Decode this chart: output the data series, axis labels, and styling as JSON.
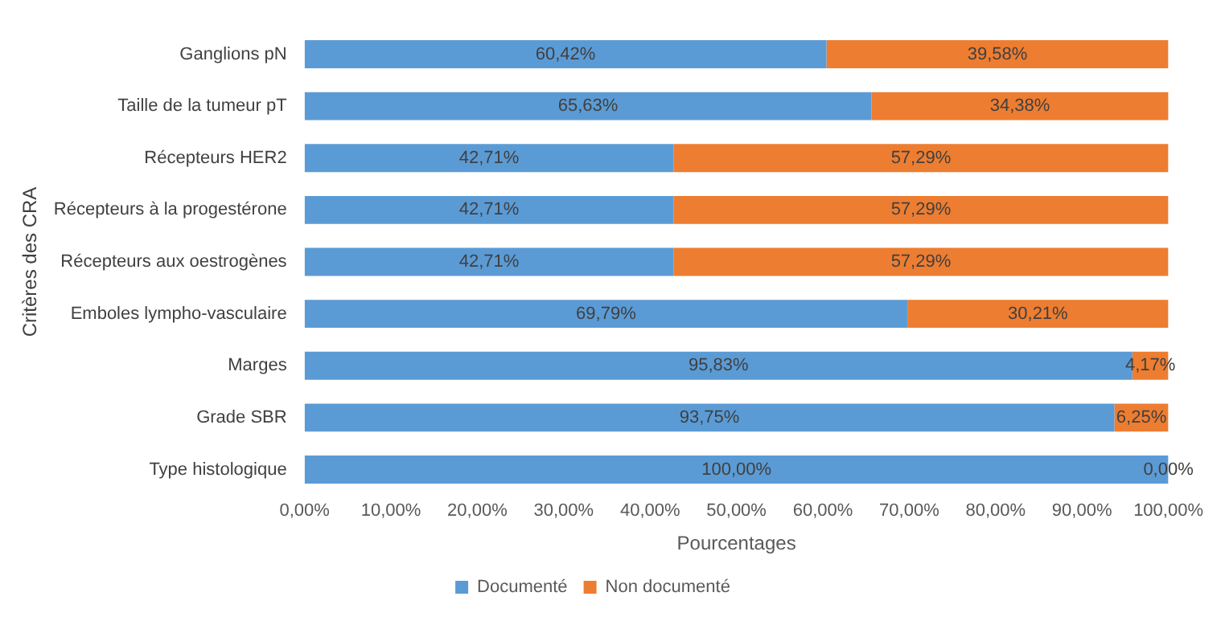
{
  "chart_data": {
    "type": "bar",
    "orientation": "horizontal",
    "stacked": true,
    "categories": [
      "Ganglions pN",
      "Taille de la tumeur pT",
      "Récepteurs HER2",
      "Récepteurs à la progestérone",
      "Récepteurs aux oestrogènes",
      "Emboles lympho-vasculaire",
      "Marges",
      "Grade SBR",
      "Type histologique"
    ],
    "series": [
      {
        "name": "Documenté",
        "color": "#5b9bd5",
        "values": [
          60.42,
          65.63,
          42.71,
          42.71,
          42.71,
          69.79,
          95.83,
          93.75,
          100
        ],
        "value_labels": [
          "60,42%",
          "65,63%",
          "42,71%",
          "42,71%",
          "42,71%",
          "69,79%",
          "95,83%",
          "93,75%",
          "100,00%"
        ]
      },
      {
        "name": "Non documenté",
        "color": "#ed7d31",
        "values": [
          39.58,
          34.38,
          57.29,
          57.29,
          57.29,
          30.21,
          4.17,
          6.25,
          0
        ],
        "value_labels": [
          "39,58%",
          "34,38%",
          "57,29%",
          "57,29%",
          "57,29%",
          "30,21%",
          "4,17%",
          "6,25%",
          "0,00%"
        ]
      }
    ],
    "xlim": [
      0,
      100
    ],
    "xticks": [
      {
        "value": 0,
        "label": "0,00%"
      },
      {
        "value": 10,
        "label": "10,00%"
      },
      {
        "value": 20,
        "label": "20,00%"
      },
      {
        "value": 30,
        "label": "30,00%"
      },
      {
        "value": 40,
        "label": "40,00%"
      },
      {
        "value": 50,
        "label": "50,00%"
      },
      {
        "value": 60,
        "label": "60,00%"
      },
      {
        "value": 70,
        "label": "70,00%"
      },
      {
        "value": 80,
        "label": "80,00%"
      },
      {
        "value": 90,
        "label": "90,00%"
      },
      {
        "value": 100,
        "label": "100,00%"
      }
    ],
    "xlabel": "Pourcentages",
    "ylabel": "Critères des CRA",
    "legend": "bottom"
  }
}
